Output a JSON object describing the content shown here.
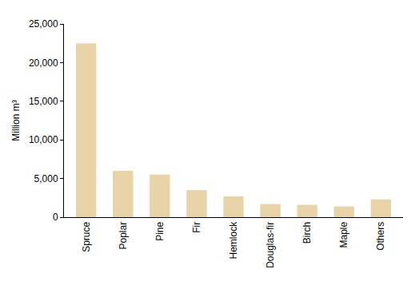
{
  "chart_data": {
    "type": "bar",
    "y_label": "Million m³",
    "categories": [
      "Spruce",
      "Poplar",
      "Pine",
      "Fir",
      "Hemlock",
      "Douglas-fir",
      "Birch",
      "Maple",
      "Others"
    ],
    "values": [
      22500,
      6000,
      5500,
      3500,
      2700,
      1700,
      1600,
      1400,
      2300
    ],
    "color": "#e8d4a8",
    "ylim": [
      0,
      25000
    ],
    "yticks": [
      0,
      {
        "value": 5000,
        "label": "5,000"
      },
      {
        "value": 10000,
        "label": "10,000"
      },
      {
        "value": 15000,
        "label": "15,000"
      },
      {
        "value": 20000,
        "label": "20,000"
      },
      {
        "value": 25000,
        "label": "25,000"
      }
    ],
    "grid": false
  }
}
